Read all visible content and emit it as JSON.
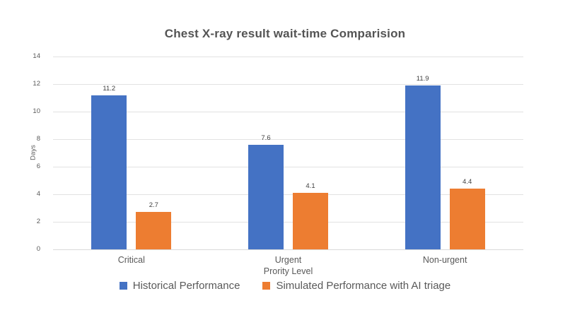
{
  "chart_data": {
    "type": "bar",
    "title": "Chest X-ray result wait-time Comparision",
    "xlabel": "Prority Level",
    "ylabel": "Days",
    "ylim": [
      0,
      14
    ],
    "yticks": [
      0,
      2,
      4,
      6,
      8,
      10,
      12,
      14
    ],
    "grid": true,
    "legend_position": "bottom",
    "categories": [
      "Critical",
      "Urgent",
      "Non-urgent"
    ],
    "series": [
      {
        "name": "Historical Performance",
        "color": "#4472C4",
        "values": [
          11.2,
          7.6,
          11.9
        ]
      },
      {
        "name": "Simulated Performance with AI triage",
        "color": "#ED7D31",
        "values": [
          2.7,
          4.1,
          4.4
        ]
      }
    ]
  }
}
